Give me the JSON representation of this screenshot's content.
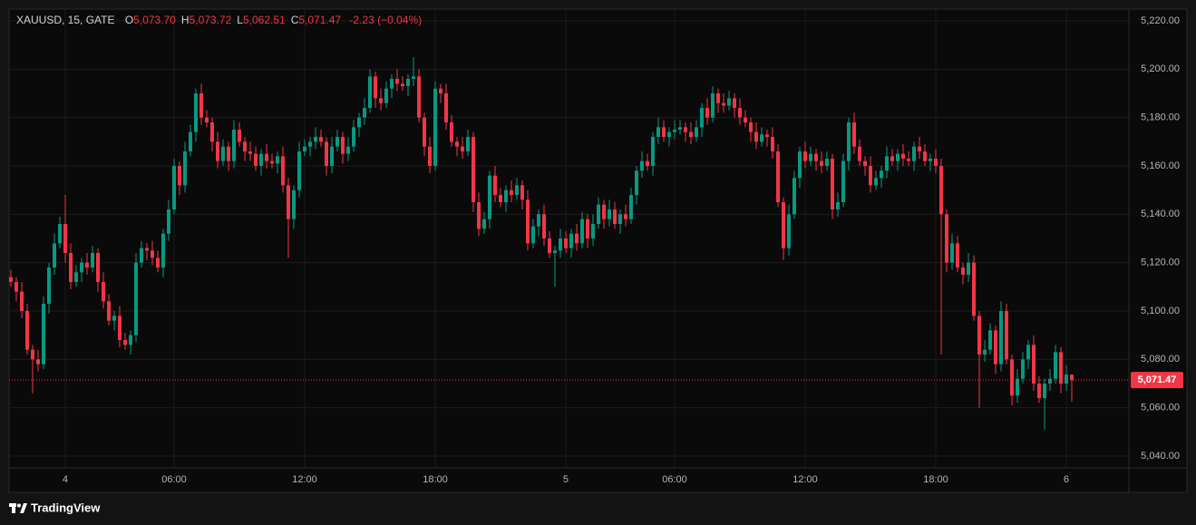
{
  "chart_data": {
    "type": "candlestick",
    "legend": {
      "symbol": "XAUUSD, 15, GATE",
      "fields": [
        {
          "key": "O",
          "value": "5,073.70"
        },
        {
          "key": "H",
          "value": "5,073.72"
        },
        {
          "key": "L",
          "value": "5,062.51"
        },
        {
          "key": "C",
          "value": "5,071.47"
        }
      ],
      "change": "-2.23 (−0.04%)"
    },
    "up_color": "#089981",
    "down_color": "#f23645",
    "grid": true,
    "ylim": [
      5035.125,
      5224.875
    ],
    "yticks": [
      {
        "value": 5040,
        "label": "5,040.00"
      },
      {
        "value": 5060,
        "label": "5,060.00"
      },
      {
        "value": 5080,
        "label": "5,080.00"
      },
      {
        "value": 5100,
        "label": "5,100.00"
      },
      {
        "value": 5120,
        "label": "5,120.00"
      },
      {
        "value": 5140,
        "label": "5,140.00"
      },
      {
        "value": 5160,
        "label": "5,160.00"
      },
      {
        "value": 5180,
        "label": "5,180.00"
      },
      {
        "value": 5200,
        "label": "5,200.00"
      },
      {
        "value": 5220,
        "label": "5,220.00"
      }
    ],
    "xlim": [
      -0.333,
      205.5
    ],
    "xticks": [
      {
        "value": 10,
        "label": "4"
      },
      {
        "value": 30,
        "label": "06:00"
      },
      {
        "value": 54,
        "label": "12:00"
      },
      {
        "value": 78,
        "label": "18:00"
      },
      {
        "value": 102,
        "label": "5"
      },
      {
        "value": 122,
        "label": "06:00"
      },
      {
        "value": 146,
        "label": "12:00"
      },
      {
        "value": 170,
        "label": "18:00"
      },
      {
        "value": 194,
        "label": "6"
      }
    ],
    "last_price": {
      "value": 5071.47,
      "label": "5,071.47"
    },
    "open": [
      5114,
      5112,
      5108,
      5100,
      5084,
      5080,
      5078,
      5103,
      5118,
      5128,
      5136,
      5124,
      5112,
      5116,
      5120,
      5118,
      5124,
      5112,
      5104,
      5096,
      5098,
      5088,
      5086,
      5090,
      5120,
      5126,
      5125,
      5122,
      5118,
      5132,
      5142,
      5160,
      5152,
      5166,
      5174,
      5190,
      5180,
      5178,
      5170,
      5162,
      5168,
      5162,
      5175,
      5170,
      5166,
      5165,
      5160,
      5165,
      5162,
      5161,
      5164,
      5152,
      5138,
      5150,
      5166,
      5168,
      5170,
      5172,
      5170,
      5160,
      5168,
      5172,
      5165,
      5168,
      5176,
      5180,
      5184,
      5197,
      5188,
      5186,
      5192,
      5196,
      5194,
      5193,
      5196,
      5197,
      5180,
      5168,
      5160,
      5192,
      5190,
      5178,
      5170,
      5168,
      5166,
      5172,
      5145,
      5134,
      5138,
      5156,
      5148,
      5145,
      5150,
      5148,
      5152,
      5146,
      5128,
      5135,
      5140,
      5130,
      5124,
      5125,
      5130,
      5126,
      5132,
      5128,
      5138,
      5130,
      5136,
      5144,
      5138,
      5142,
      5136,
      5140,
      5138,
      5148,
      5158,
      5162,
      5160,
      5172,
      5176,
      5172,
      5174,
      5175,
      5176,
      5174,
      5172,
      5176,
      5184,
      5180,
      5190,
      5186,
      5185,
      5188,
      5184,
      5180,
      5178,
      5174,
      5170,
      5173,
      5172,
      5166,
      5145,
      5126,
      5140,
      5155,
      5166,
      5162,
      5165,
      5162,
      5160,
      5163,
      5142,
      5145,
      5162,
      5178,
      5168,
      5162,
      5160,
      5152,
      5155,
      5158,
      5164,
      5162,
      5165,
      5163,
      5162,
      5168,
      5166,
      5162,
      5163,
      5160,
      5140,
      5120,
      5128,
      5118,
      5115,
      5120,
      5098,
      5082,
      5084,
      5092,
      5078,
      5100,
      5080,
      5065,
      5072,
      5080,
      5086,
      5070,
      5064,
      5070,
      5072,
      5083,
      5070,
      5073.7
    ],
    "high": [
      5117,
      5114,
      5112,
      5103,
      5086,
      5084,
      5106,
      5120,
      5132,
      5139,
      5148,
      5128,
      5119,
      5122,
      5124,
      5127,
      5126,
      5116,
      5107,
      5100,
      5102,
      5091,
      5092,
      5124,
      5129,
      5128,
      5129,
      5125,
      5134,
      5146,
      5163,
      5162,
      5170,
      5177,
      5192,
      5194,
      5183,
      5180,
      5174,
      5171,
      5170,
      5179,
      5178,
      5172,
      5170,
      5168,
      5167,
      5169,
      5165,
      5166,
      5168,
      5155,
      5152,
      5170,
      5171,
      5172,
      5176,
      5175,
      5172,
      5172,
      5175,
      5174,
      5172,
      5179,
      5182,
      5188,
      5200,
      5199,
      5192,
      5195,
      5198,
      5200,
      5197,
      5198,
      5205,
      5200,
      5182,
      5172,
      5195,
      5194,
      5194,
      5181,
      5172,
      5172,
      5175,
      5174,
      5149,
      5141,
      5158,
      5160,
      5151,
      5152,
      5154,
      5155,
      5154,
      5150,
      5138,
      5142,
      5144,
      5133,
      5127,
      5134,
      5133,
      5134,
      5136,
      5141,
      5140,
      5140,
      5147,
      5146,
      5146,
      5145,
      5142,
      5144,
      5151,
      5160,
      5166,
      5165,
      5174,
      5180,
      5179,
      5176,
      5179,
      5179,
      5178,
      5178,
      5179,
      5186,
      5188,
      5193,
      5192,
      5190,
      5191,
      5190,
      5188,
      5183,
      5180,
      5178,
      5176,
      5175,
      5176,
      5169,
      5147,
      5144,
      5158,
      5168,
      5170,
      5168,
      5167,
      5166,
      5166,
      5165,
      5149,
      5165,
      5180,
      5182,
      5171,
      5164,
      5164,
      5158,
      5160,
      5168,
      5167,
      5167,
      5169,
      5166,
      5170,
      5172,
      5169,
      5165,
      5167,
      5163,
      5142,
      5132,
      5131,
      5120,
      5124,
      5123,
      5100,
      5088,
      5095,
      5094,
      5104,
      5103,
      5082,
      5076,
      5083,
      5088,
      5090,
      5073,
      5072,
      5076,
      5086,
      5085,
      5077.7,
      5073.72
    ],
    "low": [
      5110,
      5104,
      5097,
      5082,
      5066,
      5075,
      5076,
      5099,
      5115,
      5126,
      5120,
      5109,
      5110,
      5112,
      5115,
      5116,
      5108,
      5101,
      5094,
      5092,
      5085,
      5084,
      5082,
      5087,
      5118,
      5121,
      5119,
      5116,
      5114,
      5129,
      5140,
      5148,
      5149,
      5164,
      5170,
      5177,
      5176,
      5166,
      5159,
      5160,
      5158,
      5159,
      5168,
      5162,
      5162,
      5158,
      5156,
      5159,
      5159,
      5157,
      5149,
      5122,
      5134,
      5147,
      5164,
      5164,
      5167,
      5168,
      5156,
      5157,
      5166,
      5161,
      5162,
      5166,
      5172,
      5177,
      5182,
      5184,
      5183,
      5184,
      5188,
      5191,
      5191,
      5189,
      5193,
      5178,
      5164,
      5157,
      5158,
      5186,
      5175,
      5168,
      5164,
      5163,
      5164,
      5141,
      5131,
      5132,
      5134,
      5145,
      5143,
      5141,
      5145,
      5146,
      5142,
      5125,
      5126,
      5131,
      5127,
      5122,
      5110,
      5122,
      5124,
      5122,
      5125,
      5126,
      5126,
      5127,
      5134,
      5134,
      5135,
      5134,
      5132,
      5135,
      5136,
      5144,
      5155,
      5158,
      5156,
      5169,
      5170,
      5168,
      5171,
      5173,
      5170,
      5169,
      5170,
      5172,
      5177,
      5178,
      5182,
      5182,
      5183,
      5180,
      5177,
      5176,
      5170,
      5167,
      5168,
      5168,
      5163,
      5143,
      5121,
      5123,
      5138,
      5151,
      5159,
      5160,
      5158,
      5157,
      5158,
      5138,
      5139,
      5143,
      5158,
      5165,
      5160,
      5156,
      5149,
      5150,
      5151,
      5155,
      5160,
      5158,
      5160,
      5160,
      5158,
      5163,
      5160,
      5158,
      5157,
      5082,
      5116,
      5117,
      5116,
      5111,
      5112,
      5096,
      5060,
      5079,
      5082,
      5074,
      5075,
      5078,
      5061,
      5062,
      5070,
      5076,
      5067,
      5062,
      5051,
      5067,
      5070,
      5066,
      5067,
      5062.51
    ],
    "close": [
      5112,
      5108,
      5100,
      5084,
      5080,
      5078,
      5103,
      5118,
      5128,
      5136,
      5124,
      5112,
      5116,
      5120,
      5118,
      5124,
      5112,
      5104,
      5096,
      5098,
      5088,
      5086,
      5090,
      5120,
      5126,
      5125,
      5122,
      5118,
      5132,
      5142,
      5160,
      5152,
      5166,
      5174,
      5190,
      5180,
      5178,
      5170,
      5162,
      5168,
      5162,
      5175,
      5170,
      5166,
      5165,
      5160,
      5165,
      5162,
      5161,
      5164,
      5152,
      5138,
      5150,
      5166,
      5168,
      5170,
      5172,
      5170,
      5160,
      5168,
      5172,
      5165,
      5168,
      5176,
      5180,
      5184,
      5197,
      5188,
      5186,
      5192,
      5196,
      5194,
      5193,
      5196,
      5197,
      5180,
      5168,
      5160,
      5192,
      5190,
      5178,
      5170,
      5168,
      5166,
      5172,
      5145,
      5134,
      5138,
      5156,
      5148,
      5145,
      5150,
      5148,
      5152,
      5146,
      5128,
      5135,
      5140,
      5130,
      5124,
      5125,
      5130,
      5126,
      5132,
      5128,
      5138,
      5130,
      5136,
      5144,
      5138,
      5142,
      5136,
      5140,
      5138,
      5148,
      5158,
      5162,
      5160,
      5172,
      5176,
      5172,
      5174,
      5175,
      5176,
      5174,
      5172,
      5176,
      5184,
      5180,
      5190,
      5186,
      5185,
      5188,
      5184,
      5180,
      5178,
      5174,
      5170,
      5173,
      5172,
      5166,
      5145,
      5126,
      5140,
      5155,
      5166,
      5162,
      5165,
      5162,
      5160,
      5163,
      5142,
      5145,
      5162,
      5178,
      5168,
      5162,
      5160,
      5152,
      5155,
      5158,
      5164,
      5162,
      5165,
      5163,
      5162,
      5168,
      5166,
      5162,
      5163,
      5160,
      5140,
      5120,
      5128,
      5118,
      5115,
      5120,
      5098,
      5082,
      5084,
      5092,
      5078,
      5100,
      5080,
      5065,
      5072,
      5080,
      5086,
      5070,
      5064,
      5070,
      5072,
      5083,
      5070,
      5073.7,
      5071.47
    ]
  },
  "footer": {
    "brand": "TradingView"
  }
}
